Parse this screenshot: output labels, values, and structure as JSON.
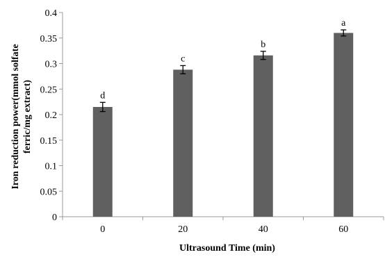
{
  "chart_data": {
    "type": "bar",
    "categories": [
      "0",
      "20",
      "40",
      "60"
    ],
    "values": [
      0.215,
      0.288,
      0.316,
      0.36
    ],
    "errors": [
      0.009,
      0.008,
      0.008,
      0.006
    ],
    "significance_labels": [
      "d",
      "c",
      "b",
      "a"
    ],
    "xlabel": "Ultrasound Time (min)",
    "ylabel_lines": [
      "Iron reduction power(mmol solfate",
      "ferric/mg extract)"
    ],
    "ylim": [
      0,
      0.4
    ],
    "yticks": [
      "0",
      "0.05",
      "0.1",
      "0.15",
      "0.2",
      "0.25",
      "0.3",
      "0.35",
      "0.4"
    ],
    "grid": false,
    "bar_color": "#606060",
    "axis_color": "#999999"
  }
}
